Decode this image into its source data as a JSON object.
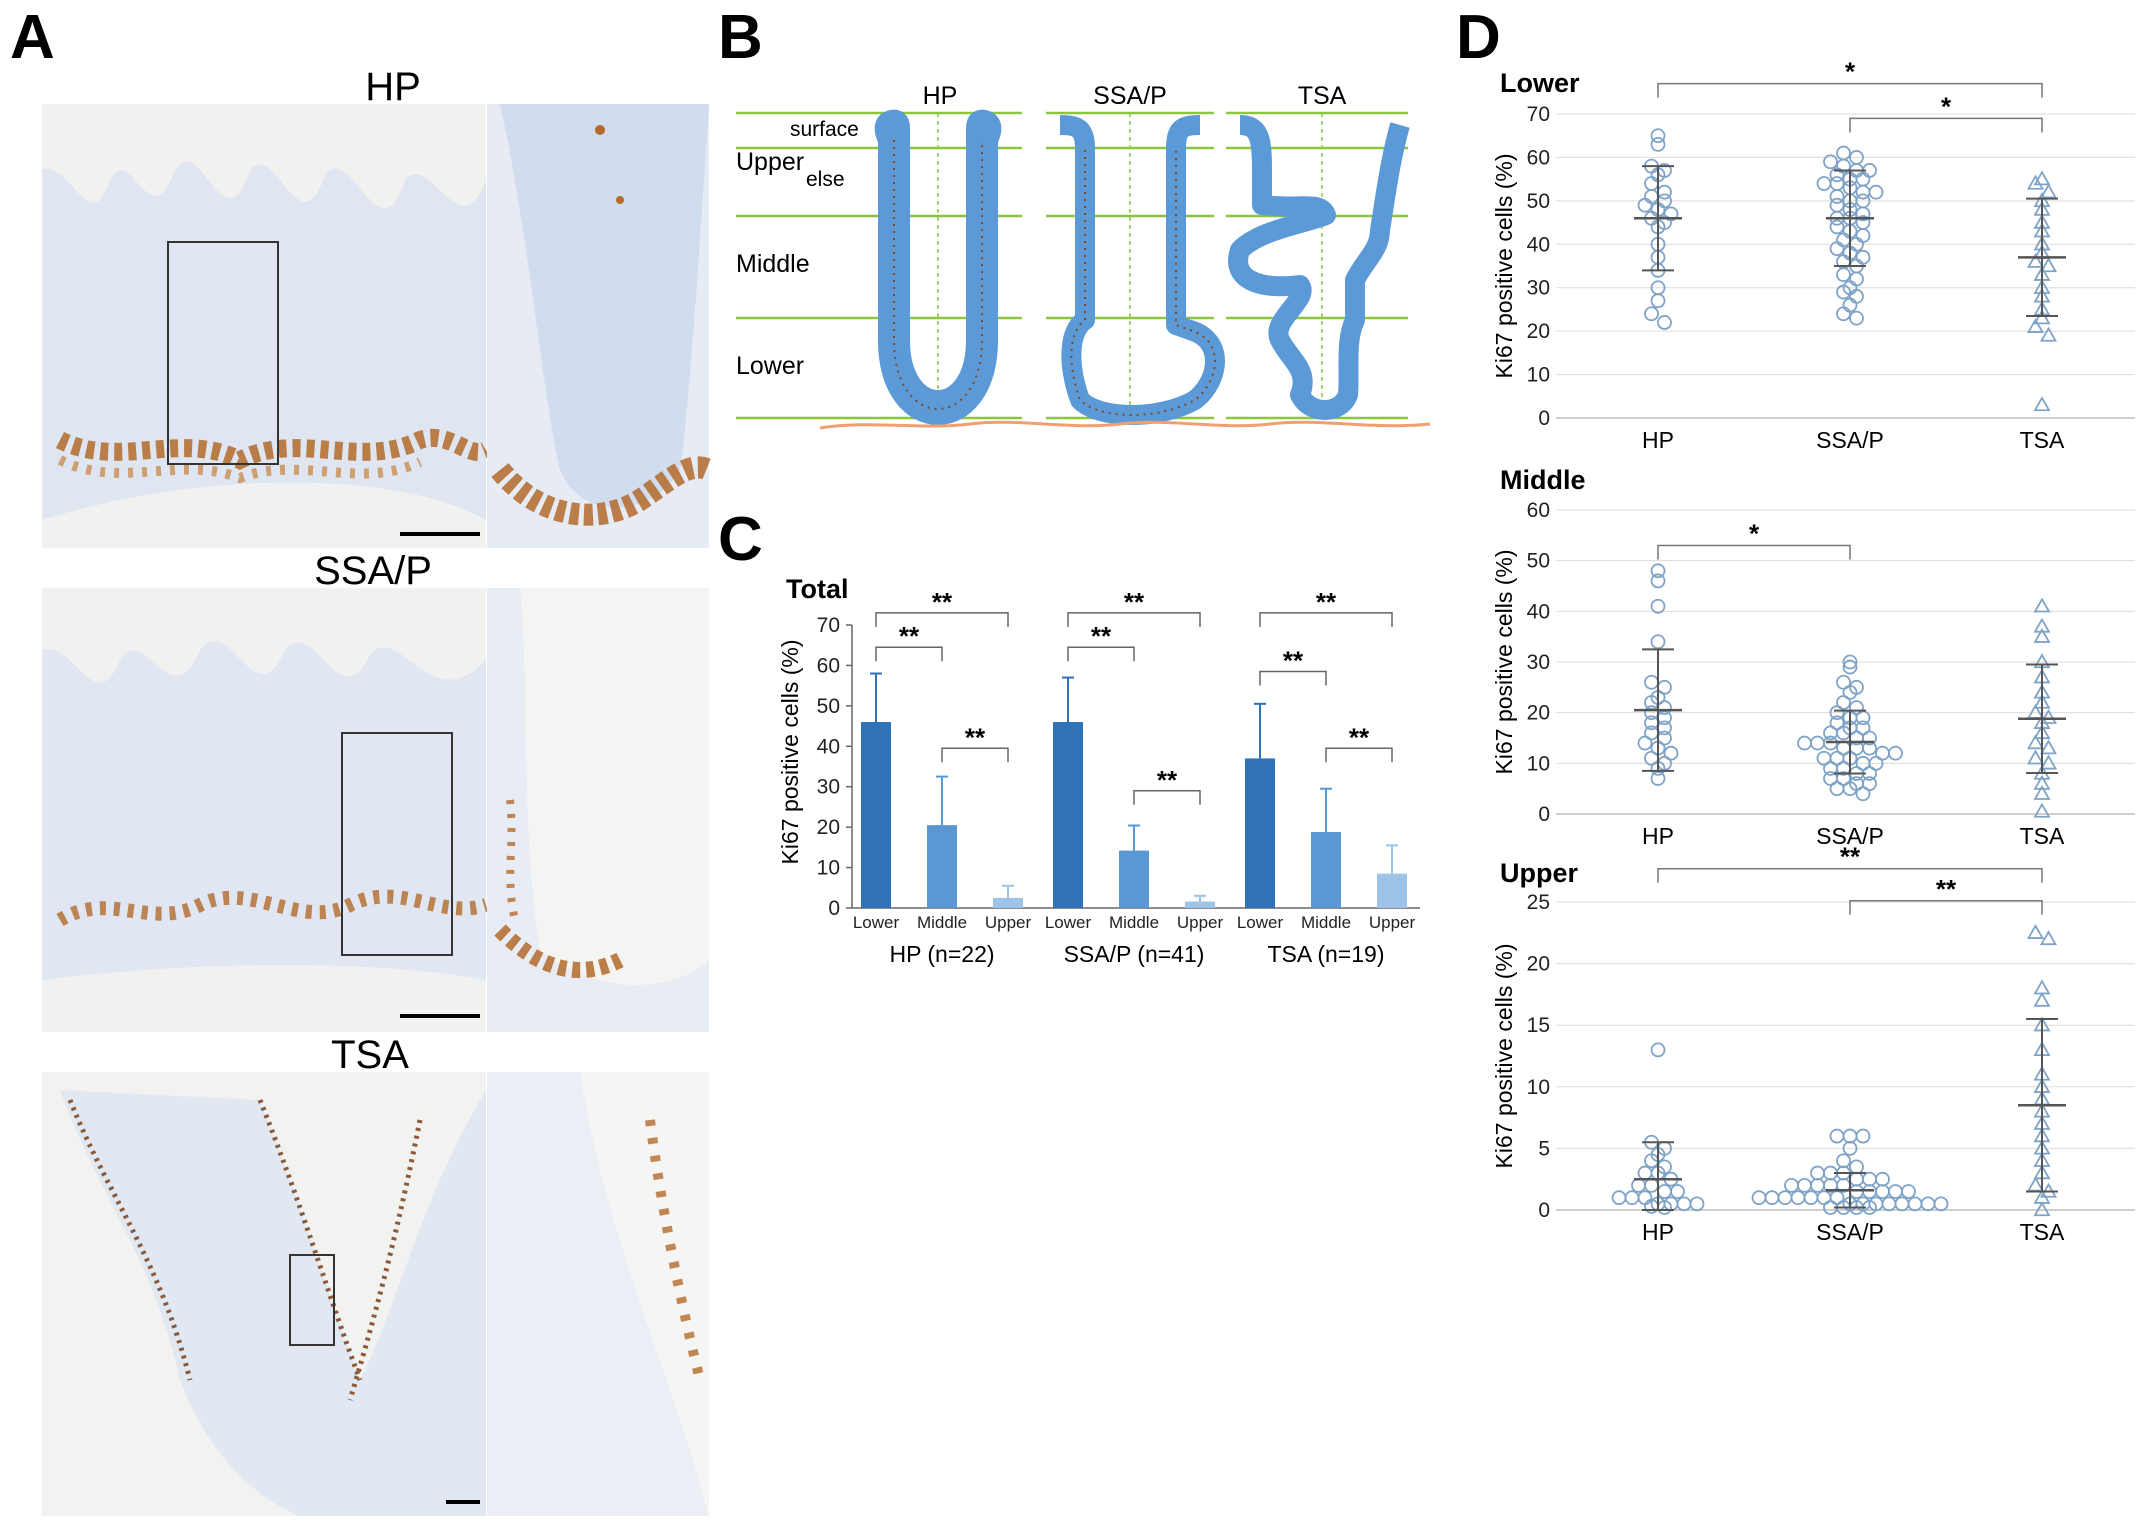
{
  "panel_letters": [
    "A",
    "B",
    "C",
    "D"
  ],
  "panelA": {
    "labels": [
      "HP",
      "SSA/P",
      "TSA"
    ]
  },
  "panelB": {
    "columns": [
      "HP",
      "SSA/P",
      "TSA"
    ],
    "zones": {
      "surface": "surface",
      "upper": "Upper",
      "else": "else",
      "middle": "Middle",
      "lower": "Lower"
    }
  },
  "colors": {
    "lower_bar": "#2f72b8",
    "middle_bar": "#5b97d2",
    "upper_bar": "#9cc3e8",
    "marker": "#7fa3c7",
    "crypt": "#5b9ad6",
    "zone_line": "#8cc63f",
    "muscularis": "#f0a070"
  },
  "chart_data": [
    {
      "type": "bar",
      "panel": "C",
      "title": "Total",
      "ylabel": "Ki67 positive cells (%)",
      "ylim": [
        0,
        70
      ],
      "yticks": [
        0,
        10,
        20,
        30,
        40,
        50,
        60,
        70
      ],
      "groups": [
        {
          "label": "HP (n=22)",
          "bars": [
            {
              "name": "Lower",
              "value": 46,
              "sd": 12
            },
            {
              "name": "Middle",
              "value": 20.5,
              "sd": 12
            },
            {
              "name": "Upper",
              "value": 2.5,
              "sd": 3
            }
          ]
        },
        {
          "label": "SSA/P (n=41)",
          "bars": [
            {
              "name": "Lower",
              "value": 46,
              "sd": 11
            },
            {
              "name": "Middle",
              "value": 14.2,
              "sd": 6.2
            },
            {
              "name": "Upper",
              "value": 1.6,
              "sd": 1.4
            }
          ]
        },
        {
          "label": "TSA (n=19)",
          "bars": [
            {
              "name": "Lower",
              "value": 37,
              "sd": 13.5
            },
            {
              "name": "Middle",
              "value": 18.8,
              "sd": 10.7
            },
            {
              "name": "Upper",
              "value": 8.5,
              "sd": 7
            }
          ]
        }
      ],
      "significance": [
        {
          "group": 0,
          "from": 0,
          "to": 2,
          "label": "**",
          "y": 73
        },
        {
          "group": 0,
          "from": 0,
          "to": 1,
          "label": "**",
          "y": 64.5
        },
        {
          "group": 0,
          "from": 1,
          "to": 2,
          "label": "**",
          "y": 39.5
        },
        {
          "group": 1,
          "from": 0,
          "to": 2,
          "label": "**",
          "y": 73
        },
        {
          "group": 1,
          "from": 0,
          "to": 1,
          "label": "**",
          "y": 64.5
        },
        {
          "group": 1,
          "from": 1,
          "to": 2,
          "label": "**",
          "y": 29
        },
        {
          "group": 2,
          "from": 0,
          "to": 2,
          "label": "**",
          "y": 73
        },
        {
          "group": 2,
          "from": 0,
          "to": 1,
          "label": "**",
          "y": 58.5
        },
        {
          "group": 2,
          "from": 1,
          "to": 2,
          "label": "**",
          "y": 39.5
        }
      ]
    },
    {
      "type": "scatter",
      "panel": "D",
      "title": "Lower",
      "ylabel": "Ki67 positive cells (%)",
      "ylim": [
        0,
        70
      ],
      "yticks": [
        0,
        10,
        20,
        30,
        40,
        50,
        60,
        70
      ],
      "categories": [
        "HP",
        "SSA/P",
        "TSA"
      ],
      "series": [
        {
          "mean": 46,
          "sd": 12,
          "points": [
            65,
            63,
            58,
            57,
            56,
            54,
            52,
            51,
            50,
            49,
            48,
            47,
            46,
            45,
            44,
            40,
            37,
            34,
            30,
            27,
            24,
            22
          ]
        },
        {
          "mean": 46,
          "sd": 11,
          "points": [
            61,
            60,
            59,
            58,
            57,
            57,
            56,
            55,
            55,
            54,
            54,
            53,
            52,
            52,
            51,
            50,
            50,
            49,
            48,
            47,
            46,
            46,
            45,
            44,
            43,
            42,
            41,
            40,
            39,
            38,
            37,
            36,
            35,
            33,
            32,
            30,
            29,
            28,
            26,
            24,
            23
          ]
        },
        {
          "mean": 37,
          "sd": 13.5,
          "points": [
            55,
            54,
            52,
            50,
            48,
            45,
            43,
            40,
            38,
            36,
            35,
            33,
            30,
            28,
            25,
            23,
            21,
            19,
            3
          ]
        }
      ],
      "significance": [
        {
          "from": 0,
          "to": 2,
          "label": "*",
          "y": 77
        },
        {
          "from": 1,
          "to": 2,
          "label": "*",
          "y": 69
        }
      ]
    },
    {
      "type": "scatter",
      "panel": "D",
      "title": "Middle",
      "ylabel": "Ki67 positive cells (%)",
      "ylim": [
        0,
        60
      ],
      "yticks": [
        0,
        10,
        20,
        30,
        40,
        50,
        60
      ],
      "categories": [
        "HP",
        "SSA/P",
        "TSA"
      ],
      "series": [
        {
          "mean": 20.5,
          "sd": 12,
          "points": [
            48,
            46,
            41,
            34,
            26,
            25,
            23,
            22,
            21,
            20,
            19,
            18,
            17,
            16,
            15,
            14,
            13,
            12,
            11,
            10,
            9,
            7
          ]
        },
        {
          "mean": 14.2,
          "sd": 6.2,
          "points": [
            30,
            29,
            26,
            25,
            24,
            22,
            21,
            20,
            19,
            19,
            18,
            17,
            17,
            16,
            16,
            15,
            15,
            14,
            14,
            14,
            13,
            13,
            13,
            12,
            12,
            11,
            11,
            11,
            10,
            10,
            9,
            9,
            8,
            8,
            7,
            7,
            6,
            6,
            5,
            5,
            4
          ]
        },
        {
          "mean": 18.8,
          "sd": 10.7,
          "points": [
            41,
            37,
            35,
            30,
            27,
            24,
            22,
            20,
            19,
            18,
            16,
            14,
            13,
            11,
            10,
            8,
            6,
            4,
            0.5
          ]
        }
      ],
      "significance": [
        {
          "from": 0,
          "to": 1,
          "label": "*",
          "y": 53
        }
      ]
    },
    {
      "type": "scatter",
      "panel": "D",
      "title": "Upper",
      "ylabel": "Ki67 positive cells (%)",
      "ylim": [
        0,
        25
      ],
      "yticks": [
        0,
        5,
        10,
        15,
        20,
        25
      ],
      "categories": [
        "HP",
        "SSA/P",
        "TSA"
      ],
      "series": [
        {
          "mean": 2.5,
          "sd": 3,
          "points": [
            13,
            5.5,
            5,
            4.5,
            4,
            3.5,
            3,
            3,
            2.5,
            2,
            2,
            1.5,
            1.5,
            1,
            1,
            1,
            0.5,
            0.5,
            0.5,
            0.5,
            0.3,
            0.2
          ]
        },
        {
          "mean": 1.6,
          "sd": 1.4,
          "points": [
            6,
            6,
            6,
            5,
            4,
            3.5,
            3,
            3,
            3,
            2.5,
            2.5,
            2.5,
            2,
            2,
            2,
            2,
            2,
            1.5,
            1.5,
            1.5,
            1.5,
            1.5,
            1,
            1,
            1,
            1,
            1,
            1,
            1,
            0.5,
            0.5,
            0.5,
            0.5,
            0.5,
            0.5,
            0.5,
            0.5,
            0.2,
            0.2,
            0.2,
            0.2
          ]
        },
        {
          "mean": 8.5,
          "sd": 7,
          "points": [
            22.5,
            22,
            18,
            17,
            15,
            13,
            11,
            10,
            9,
            8,
            7,
            6,
            5,
            4,
            3,
            2,
            1.5,
            1,
            0
          ]
        }
      ],
      "significance": [
        {
          "from": 0,
          "to": 2,
          "label": "**",
          "y": 27.7
        },
        {
          "from": 1,
          "to": 2,
          "label": "**",
          "y": 25.1
        }
      ]
    }
  ]
}
